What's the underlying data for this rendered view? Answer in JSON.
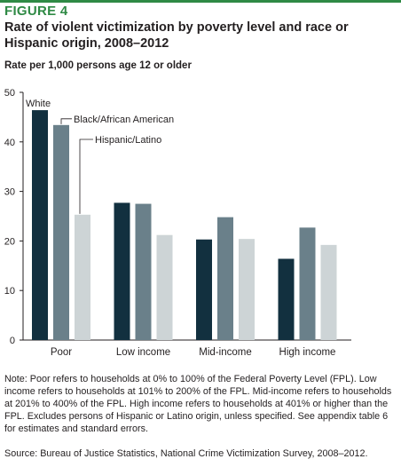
{
  "figure_label": "FIGURE 4",
  "title": "Rate of violent victimization by poverty level and race or Hispanic origin, 2008–2012",
  "ylabel": "Rate per 1,000 persons age 12 or older",
  "note": "Note: Poor refers to households at 0% to 100% of the Federal Poverty Level (FPL). Low income refers to households at 101% to 200% of the FPL. Mid-income refers to households at 201% to 400% of the FPL. High income refers to households at 401% or higher than the FPL. Excludes persons of Hispanic or Latino origin, unless specified. See appendix table 6 for estimates and standard errors.",
  "source": "Source: Bureau of Justice Statistics, National Crime Victimization Survey, 2008–2012.",
  "colors": {
    "accent": "#2f8a45",
    "white_series": "#12303f",
    "black_series": "#6a808a",
    "hispanic_series": "#cdd4d6"
  },
  "chart_data": {
    "type": "bar",
    "categories": [
      "Poor",
      "Low income",
      "Mid-income",
      "High income"
    ],
    "series": [
      {
        "name": "White",
        "values": [
          46.4,
          27.7,
          20.3,
          16.4
        ],
        "color": "#12303f"
      },
      {
        "name": "Black/African American",
        "values": [
          43.4,
          27.5,
          24.8,
          22.7
        ],
        "color": "#6a808a"
      },
      {
        "name": "Hispanic/Latino",
        "values": [
          25.3,
          21.2,
          20.4,
          19.2
        ],
        "color": "#cdd4d6"
      }
    ],
    "ylim": [
      0,
      50
    ],
    "yticks": [
      0,
      10,
      20,
      30,
      40,
      50
    ],
    "grid": false,
    "legend": "direct labels on Poor bars"
  }
}
